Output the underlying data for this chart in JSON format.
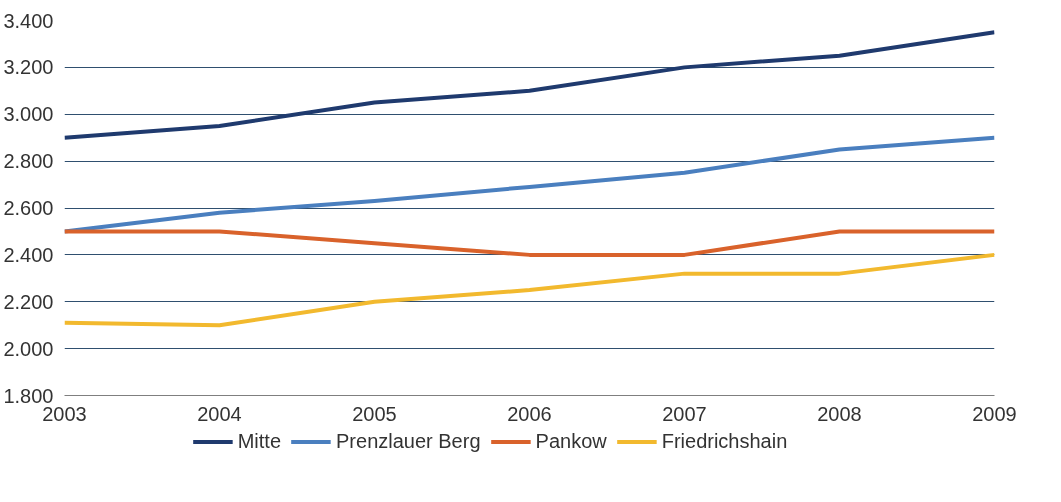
{
  "chart_data": {
    "type": "line",
    "x": [
      2003,
      2004,
      2005,
      2006,
      2007,
      2008,
      2009
    ],
    "series": [
      {
        "name": "Mitte",
        "color": "#1f3a6e",
        "values": [
          2900,
          2950,
          3050,
          3100,
          3200,
          3250,
          3350
        ]
      },
      {
        "name": "Prenzlauer Berg",
        "color": "#4a7fbf",
        "values": [
          2500,
          2580,
          2630,
          2690,
          2750,
          2850,
          2900
        ]
      },
      {
        "name": "Pankow",
        "color": "#d9622b",
        "values": [
          2500,
          2500,
          2450,
          2400,
          2400,
          2500,
          2500
        ]
      },
      {
        "name": "Friedrichshain",
        "color": "#f2b92e",
        "values": [
          2110,
          2100,
          2200,
          2250,
          2320,
          2320,
          2400
        ]
      }
    ],
    "xlim": [
      2003,
      2009
    ],
    "xticks": [
      2003,
      2004,
      2005,
      2006,
      2007,
      2008,
      2009
    ],
    "ylim": [
      1800,
      3400
    ],
    "yticks": [
      {
        "value": 1800,
        "label": "1.800"
      },
      {
        "value": 2000,
        "label": "2.000"
      },
      {
        "value": 2200,
        "label": "2.200"
      },
      {
        "value": 2400,
        "label": "2.400"
      },
      {
        "value": 2600,
        "label": "2.600"
      },
      {
        "value": 2800,
        "label": "2.800"
      },
      {
        "value": 3000,
        "label": "3.000"
      },
      {
        "value": 3200,
        "label": "3.200"
      },
      {
        "value": 3400,
        "label": "3.400"
      }
    ],
    "grid": "y",
    "legend": "bottom",
    "marker": "none",
    "line_style": "solid"
  }
}
